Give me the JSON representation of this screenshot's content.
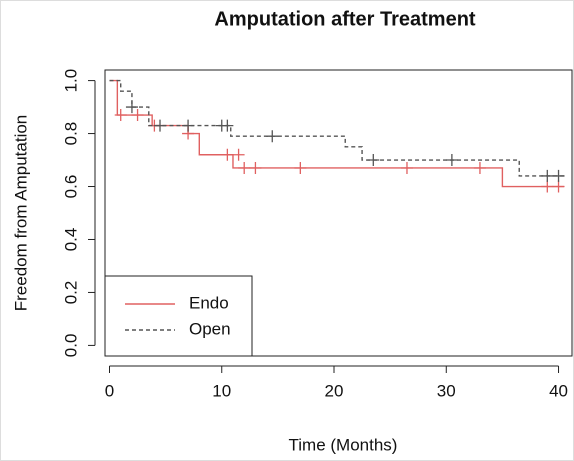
{
  "chart_data": {
    "type": "step",
    "title": "Amputation after Treatment",
    "x_label": "Time (Months)",
    "y_label": "Freedom from Amputation",
    "xlim": [
      -0.4,
      41.2
    ],
    "ylim": [
      -0.04,
      1.04
    ],
    "xticks": [
      0,
      10,
      20,
      30,
      40
    ],
    "yticks": [
      {
        "value": 0,
        "label": "0.0"
      },
      0.2,
      0.4,
      0.6,
      0.8,
      {
        "value": 1,
        "label": "1.0"
      }
    ],
    "legend": "bottomleft",
    "series": [
      {
        "name": "Endo",
        "color": "#e06060",
        "linestyle": "solid",
        "x": [
          0,
          0.7,
          3.8,
          7,
          8,
          11,
          35,
          40.5
        ],
        "values": [
          1,
          0.87,
          0.83,
          0.8,
          0.72,
          0.67,
          0.6,
          0.6
        ],
        "censored": {
          "x": [
            1,
            2.5,
            4,
            7,
            10.5,
            11.5,
            12,
            13,
            17,
            26.5,
            33,
            39,
            40
          ],
          "values": [
            0.87,
            0.87,
            0.83,
            0.8,
            0.72,
            0.72,
            0.67,
            0.67,
            0.67,
            0.67,
            0.67,
            0.6,
            0.6
          ]
        }
      },
      {
        "name": "Open",
        "color": "#555555",
        "linestyle": "dashed",
        "x": [
          0,
          1,
          2,
          3.5,
          10.8,
          21,
          22.5,
          36.5,
          40.5
        ],
        "values": [
          1,
          0.96,
          0.9,
          0.83,
          0.79,
          0.75,
          0.7,
          0.64,
          0.64
        ],
        "censored": {
          "x": [
            2,
            4.5,
            7,
            10,
            10.5,
            14.5,
            23.5,
            30.5,
            39,
            40
          ],
          "values": [
            0.9,
            0.83,
            0.83,
            0.83,
            0.83,
            0.79,
            0.7,
            0.7,
            0.64,
            0.64
          ]
        }
      }
    ]
  }
}
